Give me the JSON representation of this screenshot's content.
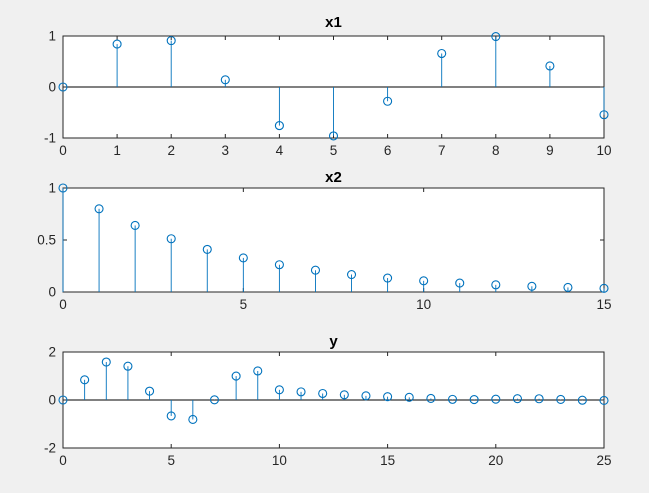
{
  "figure": {
    "background_color": "#f0f0f0",
    "axes_background_color": "#ffffff",
    "stem_color": "#0072BD",
    "axis_color": "#262626",
    "baseline_color": "#000000",
    "title_color": "#000000"
  },
  "chart_data": [
    {
      "type": "stem",
      "title": "x1",
      "xlabel": "",
      "ylabel": "",
      "x": [
        0,
        1,
        2,
        3,
        4,
        5,
        6,
        7,
        8,
        9,
        10
      ],
      "values": [
        0,
        0.8415,
        0.9093,
        0.1411,
        -0.7568,
        -0.9589,
        -0.2794,
        0.657,
        0.9894,
        0.4121,
        -0.544
      ],
      "xlim": [
        0,
        10
      ],
      "ylim": [
        -1,
        1
      ],
      "xticks": [
        0,
        1,
        2,
        3,
        4,
        5,
        6,
        7,
        8,
        9,
        10
      ],
      "yticks": [
        -1,
        0,
        1
      ],
      "baseline": 0,
      "grid": false,
      "legend": null
    },
    {
      "type": "stem",
      "title": "x2",
      "xlabel": "",
      "ylabel": "",
      "x": [
        0,
        1,
        2,
        3,
        4,
        5,
        6,
        7,
        8,
        9,
        10,
        11,
        12,
        13,
        14,
        15
      ],
      "values": [
        1,
        0.8,
        0.64,
        0.512,
        0.4096,
        0.3277,
        0.2621,
        0.2097,
        0.1678,
        0.1342,
        0.1074,
        0.0859,
        0.0687,
        0.055,
        0.044,
        0.0352
      ],
      "xlim": [
        0,
        15
      ],
      "ylim": [
        0,
        1
      ],
      "xticks": [
        0,
        5,
        10,
        15
      ],
      "yticks": [
        0,
        0.5,
        1
      ],
      "baseline": 0,
      "grid": false,
      "legend": null
    },
    {
      "type": "stem",
      "title": "y",
      "xlabel": "",
      "ylabel": "",
      "x": [
        0,
        1,
        2,
        3,
        4,
        5,
        6,
        7,
        8,
        9,
        10,
        11,
        12,
        13,
        14,
        15,
        16,
        17,
        18,
        19,
        20,
        21,
        22,
        23,
        24,
        25
      ],
      "values": [
        0,
        0.8415,
        1.5825,
        1.4071,
        0.3689,
        -0.6638,
        -0.8104,
        0.0087,
        0.9963,
        1.2092,
        0.4234,
        0.3387,
        0.271,
        0.2168,
        0.1734,
        0.1387,
        0.111,
        0.0651,
        0.0265,
        0.0172,
        0.0351,
        0.0551,
        0.0519,
        0.023,
        -0.0094,
        -0.0191
      ],
      "xlim": [
        0,
        25
      ],
      "ylim": [
        -2,
        2
      ],
      "xticks": [
        0,
        5,
        10,
        15,
        20,
        25
      ],
      "yticks": [
        -2,
        0,
        2
      ],
      "baseline": 0,
      "grid": false,
      "legend": null
    }
  ]
}
